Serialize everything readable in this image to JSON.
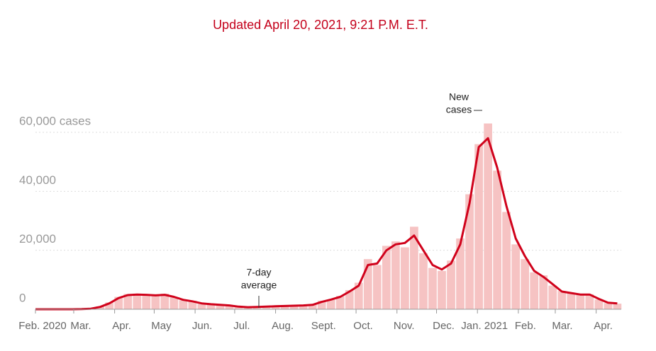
{
  "chart_data": {
    "type": "bar",
    "title": "Updated April 20, 2021, 9:21 P.M. E.T.",
    "x": [
      0,
      7,
      14,
      21,
      28,
      35,
      42,
      49,
      56,
      63,
      70,
      77,
      84,
      91,
      98,
      105,
      112,
      119,
      126,
      133,
      140,
      147,
      154,
      161,
      168,
      175,
      182,
      189,
      196,
      203,
      210,
      217,
      224,
      231,
      238,
      245,
      252,
      259,
      266,
      273,
      280,
      287,
      294,
      301,
      308,
      315,
      322,
      329,
      336,
      343,
      350,
      357,
      364,
      371,
      378,
      385,
      392,
      399,
      406,
      413,
      420,
      427,
      434,
      441
    ],
    "series": [
      {
        "type": "bar",
        "color": "#f6c3c3",
        "values": [
          0,
          0,
          0,
          0,
          0,
          60,
          300,
          1000,
          2300,
          4200,
          5200,
          5300,
          4600,
          5100,
          5300,
          4000,
          3000,
          2900,
          1800,
          1900,
          1300,
          1400,
          800,
          800,
          900,
          900,
          1100,
          1200,
          1100,
          1400,
          1600,
          2900,
          3200,
          4500,
          6500,
          9000,
          17000,
          15000,
          21500,
          23000,
          21000,
          28000,
          19000,
          14000,
          13000,
          16500,
          24000,
          39000,
          56000,
          63000,
          47000,
          33000,
          22000,
          17000,
          12500,
          11500,
          8000,
          6200,
          5300,
          5200,
          5100,
          3300,
          2100,
          1900
        ]
      },
      {
        "type": "line",
        "color": "#d0021b",
        "values": [
          0,
          0,
          0,
          0,
          0,
          50,
          200,
          800,
          2000,
          3800,
          4800,
          5000,
          4900,
          4700,
          4900,
          4200,
          3200,
          2700,
          2000,
          1700,
          1500,
          1300,
          900,
          700,
          800,
          900,
          1000,
          1100,
          1200,
          1300,
          1500,
          2500,
          3300,
          4200,
          6000,
          8000,
          15000,
          15500,
          20000,
          22000,
          22500,
          25000,
          20000,
          15000,
          13500,
          15500,
          22000,
          36000,
          55000,
          58000,
          48000,
          35000,
          24000,
          18000,
          13000,
          11000,
          8500,
          6000,
          5500,
          5000,
          5000,
          3500,
          2200,
          2000
        ]
      }
    ],
    "xlim": [
      0,
      444
    ],
    "xticks": [
      {
        "value": 0,
        "label": "Feb. 2020"
      },
      {
        "value": 29,
        "label": "Mar."
      },
      {
        "value": 60,
        "label": "Apr."
      },
      {
        "value": 90,
        "label": "May"
      },
      {
        "value": 121,
        "label": "Jun."
      },
      {
        "value": 151,
        "label": "Jul."
      },
      {
        "value": 182,
        "label": "Aug."
      },
      {
        "value": 213,
        "label": "Sept."
      },
      {
        "value": 243,
        "label": "Oct."
      },
      {
        "value": 274,
        "label": "Nov."
      },
      {
        "value": 304,
        "label": "Dec."
      },
      {
        "value": 335,
        "label": "Jan. 2021"
      },
      {
        "value": 366,
        "label": "Feb."
      },
      {
        "value": 394,
        "label": "Mar."
      },
      {
        "value": 425,
        "label": "Apr."
      }
    ],
    "ylim": [
      0,
      68000
    ],
    "yticks": [
      0,
      {
        "value": 20000,
        "label": "20,000"
      },
      {
        "value": 40000,
        "label": "40,000"
      },
      {
        "value": 60000,
        "label": "60,000 cases"
      }
    ],
    "grid": true,
    "annotations": [
      {
        "lines": [
          "7-day",
          "average"
        ]
      },
      {
        "lines": [
          "New",
          "cases"
        ]
      }
    ]
  }
}
